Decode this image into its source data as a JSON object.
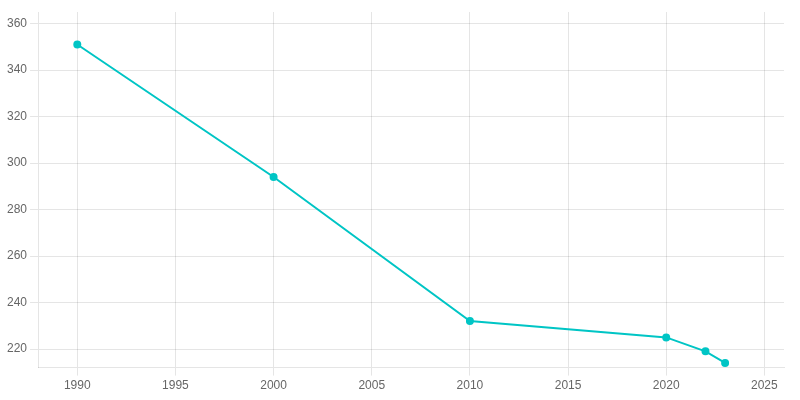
{
  "chart_data": {
    "type": "line",
    "x": [
      1990,
      2000,
      2010,
      2020,
      2022,
      2023
    ],
    "values": [
      351,
      294,
      232,
      225,
      219,
      214
    ],
    "color": "#00C5C5",
    "marker": "o",
    "xlim": [
      1988,
      2026
    ],
    "ylim": [
      212,
      365
    ],
    "xticks": [
      1990,
      1995,
      2000,
      2005,
      2010,
      2015,
      2020,
      2025
    ],
    "yticks": [
      220,
      240,
      260,
      280,
      300,
      320,
      340,
      360
    ],
    "grid": true
  }
}
